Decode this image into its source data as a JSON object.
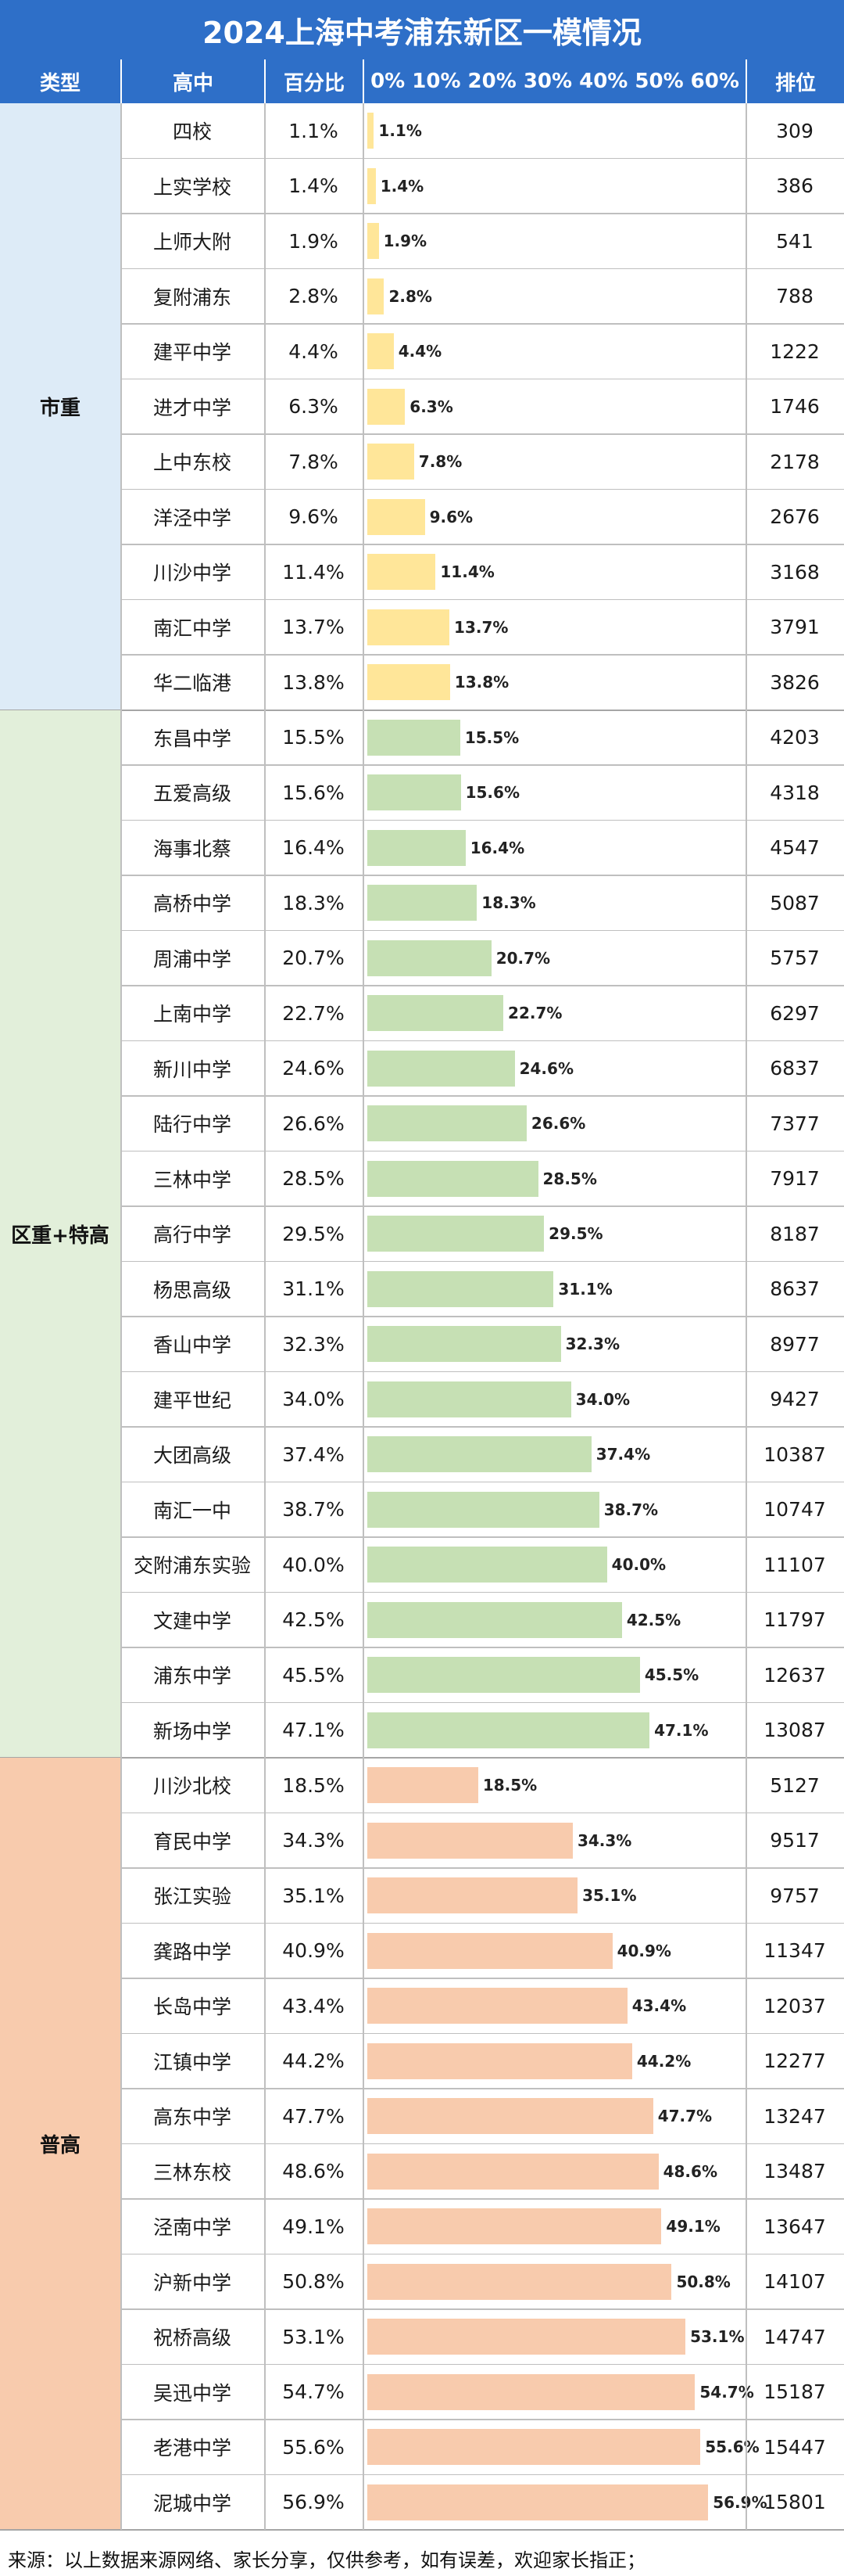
{
  "title": "2024上海中考浦东新区一模情况",
  "headers": {
    "type": "类型",
    "school": "高中",
    "percent": "百分比",
    "axis": "0% 10% 20% 30% 40% 50% 60%",
    "rank": "排位"
  },
  "colors": {
    "header_bg": "#2E6FC8",
    "group_1": "#FFE699",
    "group_2": "#C6E0B4",
    "group_3": "#F8CBAD",
    "group_1_bg": "#DDEBF7",
    "group_2_bg": "#E2EFDA",
    "group_3_bg": "#F8CBAD"
  },
  "chart_data": {
    "type": "bar",
    "orientation": "horizontal",
    "title": "2024上海中考浦东新区一模情况",
    "xlim": [
      0,
      60
    ],
    "x_tick_labels": [
      "0%",
      "10%",
      "20%",
      "30%",
      "40%",
      "50%",
      "60%"
    ],
    "groups": [
      {
        "name": "市重",
        "rows": [
          {
            "school": "四校",
            "percent": 1.1,
            "percent_label": "1.1%",
            "rank": 309
          },
          {
            "school": "上实学校",
            "percent": 1.4,
            "percent_label": "1.4%",
            "rank": 386
          },
          {
            "school": "上师大附",
            "percent": 1.9,
            "percent_label": "1.9%",
            "rank": 541
          },
          {
            "school": "复附浦东",
            "percent": 2.8,
            "percent_label": "2.8%",
            "rank": 788
          },
          {
            "school": "建平中学",
            "percent": 4.4,
            "percent_label": "4.4%",
            "rank": 1222
          },
          {
            "school": "进才中学",
            "percent": 6.3,
            "percent_label": "6.3%",
            "rank": 1746
          },
          {
            "school": "上中东校",
            "percent": 7.8,
            "percent_label": "7.8%",
            "rank": 2178
          },
          {
            "school": "洋泾中学",
            "percent": 9.6,
            "percent_label": "9.6%",
            "rank": 2676
          },
          {
            "school": "川沙中学",
            "percent": 11.4,
            "percent_label": "11.4%",
            "rank": 3168
          },
          {
            "school": "南汇中学",
            "percent": 13.7,
            "percent_label": "13.7%",
            "rank": 3791
          },
          {
            "school": "华二临港",
            "percent": 13.8,
            "percent_label": "13.8%",
            "rank": 3826
          }
        ]
      },
      {
        "name": "区重+特高",
        "rows": [
          {
            "school": "东昌中学",
            "percent": 15.5,
            "percent_label": "15.5%",
            "rank": 4203
          },
          {
            "school": "五爱高级",
            "percent": 15.6,
            "percent_label": "15.6%",
            "rank": 4318
          },
          {
            "school": "海事北蔡",
            "percent": 16.4,
            "percent_label": "16.4%",
            "rank": 4547
          },
          {
            "school": "高桥中学",
            "percent": 18.3,
            "percent_label": "18.3%",
            "rank": 5087
          },
          {
            "school": "周浦中学",
            "percent": 20.7,
            "percent_label": "20.7%",
            "rank": 5757
          },
          {
            "school": "上南中学",
            "percent": 22.7,
            "percent_label": "22.7%",
            "rank": 6297
          },
          {
            "school": "新川中学",
            "percent": 24.6,
            "percent_label": "24.6%",
            "rank": 6837
          },
          {
            "school": "陆行中学",
            "percent": 26.6,
            "percent_label": "26.6%",
            "rank": 7377
          },
          {
            "school": "三林中学",
            "percent": 28.5,
            "percent_label": "28.5%",
            "rank": 7917
          },
          {
            "school": "高行中学",
            "percent": 29.5,
            "percent_label": "29.5%",
            "rank": 8187
          },
          {
            "school": "杨思高级",
            "percent": 31.1,
            "percent_label": "31.1%",
            "rank": 8637
          },
          {
            "school": "香山中学",
            "percent": 32.3,
            "percent_label": "32.3%",
            "rank": 8977
          },
          {
            "school": "建平世纪",
            "percent": 34.0,
            "percent_label": "34.0%",
            "rank": 9427
          },
          {
            "school": "大团高级",
            "percent": 37.4,
            "percent_label": "37.4%",
            "rank": 10387
          },
          {
            "school": "南汇一中",
            "percent": 38.7,
            "percent_label": "38.7%",
            "rank": 10747
          },
          {
            "school": "交附浦东实验",
            "percent": 40.0,
            "percent_label": "40.0%",
            "rank": 11107
          },
          {
            "school": "文建中学",
            "percent": 42.5,
            "percent_label": "42.5%",
            "rank": 11797
          },
          {
            "school": "浦东中学",
            "percent": 45.5,
            "percent_label": "45.5%",
            "rank": 12637
          },
          {
            "school": "新场中学",
            "percent": 47.1,
            "percent_label": "47.1%",
            "rank": 13087
          }
        ]
      },
      {
        "name": "普高",
        "rows": [
          {
            "school": "川沙北校",
            "percent": 18.5,
            "percent_label": "18.5%",
            "rank": 5127
          },
          {
            "school": "育民中学",
            "percent": 34.3,
            "percent_label": "34.3%",
            "rank": 9517
          },
          {
            "school": "张江实验",
            "percent": 35.1,
            "percent_label": "35.1%",
            "rank": 9757
          },
          {
            "school": "龚路中学",
            "percent": 40.9,
            "percent_label": "40.9%",
            "rank": 11347
          },
          {
            "school": "长岛中学",
            "percent": 43.4,
            "percent_label": "43.4%",
            "rank": 12037
          },
          {
            "school": "江镇中学",
            "percent": 44.2,
            "percent_label": "44.2%",
            "rank": 12277
          },
          {
            "school": "高东中学",
            "percent": 47.7,
            "percent_label": "47.7%",
            "rank": 13247
          },
          {
            "school": "三林东校",
            "percent": 48.6,
            "percent_label": "48.6%",
            "rank": 13487
          },
          {
            "school": "泾南中学",
            "percent": 49.1,
            "percent_label": "49.1%",
            "rank": 13647
          },
          {
            "school": "沪新中学",
            "percent": 50.8,
            "percent_label": "50.8%",
            "rank": 14107
          },
          {
            "school": "祝桥高级",
            "percent": 53.1,
            "percent_label": "53.1%",
            "rank": 14747
          },
          {
            "school": "吴迅中学",
            "percent": 54.7,
            "percent_label": "54.7%",
            "rank": 15187
          },
          {
            "school": "老港中学",
            "percent": 55.6,
            "percent_label": "55.6%",
            "rank": 15447
          },
          {
            "school": "泥城中学",
            "percent": 56.9,
            "percent_label": "56.9%",
            "rank": 15801
          }
        ]
      }
    ]
  },
  "footer": "来源：以上数据来源网络、家长分享，仅供参考，如有误差，欢迎家长指正；"
}
